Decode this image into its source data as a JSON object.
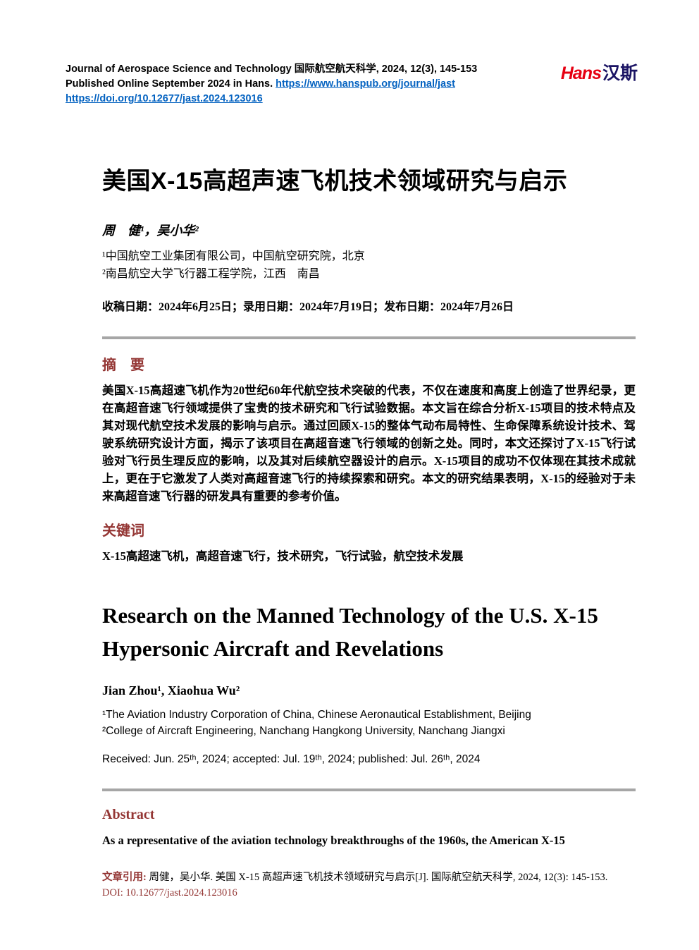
{
  "colors": {
    "accent_heading": "#943634",
    "link_blue": "#0563c1",
    "logo_red": "#e60012",
    "logo_dark_blue": "#1b1464",
    "divider_gray": "#a6a6a6"
  },
  "header": {
    "journal_line": "Journal of Aerospace Science and Technology 国际航空航天科学, 2024, 12(3), 145-153",
    "published_prefix": "Published Online September 2024 in Hans. ",
    "journal_url": "https://www.hanspub.org/journal/jast",
    "doi_url": "https://doi.org/10.12677/jast.2024.123016",
    "logo_latin": "Hans",
    "logo_cn": "汉斯"
  },
  "cn": {
    "title": "美国X-15高超声速飞机技术领域研究与启示",
    "authors": "周　健¹，吴小华²",
    "affiliations": [
      "¹中国航空工业集团有限公司，中国航空研究院，北京",
      "²南昌航空大学飞行器工程学院，江西　南昌"
    ],
    "dates": "收稿日期：2024年6月25日；录用日期：2024年7月19日；发布日期：2024年7月26日",
    "abstract_heading": "摘　要",
    "abstract": "美国X-15高超速飞机作为20世纪60年代航空技术突破的代表，不仅在速度和高度上创造了世界纪录，更在高超音速飞行领域提供了宝贵的技术研究和飞行试验数据。本文旨在综合分析X-15项目的技术特点及其对现代航空技术发展的影响与启示。通过回顾X-15的整体气动布局特性、生命保障系统设计技术、驾驶系统研究设计方面，揭示了该项目在高超音速飞行领域的创新之处。同时，本文还探讨了X-15飞行试验对飞行员生理反应的影响，以及其对后续航空器设计的启示。X-15项目的成功不仅体现在其技术成就上，更在于它激发了人类对高超音速飞行的持续探索和研究。本文的研究结果表明，X-15的经验对于未来高超音速飞行器的研发具有重要的参考价值。",
    "keywords_heading": "关键词",
    "keywords": "X-15高超速飞机，高超音速飞行，技术研究，飞行试验，航空技术发展"
  },
  "en": {
    "title": "Research on the Manned Technology of the U.S. X-15 Hypersonic Aircraft and Revelations",
    "authors": "Jian Zhou¹, Xiaohua Wu²",
    "affiliations": [
      "¹The Aviation Industry Corporation of China, Chinese Aeronautical Establishment, Beijing",
      "²College of Aircraft Engineering, Nanchang Hangkong University, Nanchang Jiangxi"
    ],
    "received": "Received: Jun. 25ᵗʰ, 2024; accepted: Jul. 19ᵗʰ, 2024; published: Jul. 26ᵗʰ, 2024",
    "abstract_heading": "Abstract",
    "abstract_first_line": "As a representative of the aviation technology breakthroughs of the 1960s, the American X-15"
  },
  "footer": {
    "label": "文章引用: ",
    "citation": "周健，吴小华. 美国 X-15 高超声速飞机技术领域研究与启示[J]. 国际航空航天科学, 2024, 12(3): 145-153.",
    "doi": "DOI: 10.12677/jast.2024.123016"
  }
}
